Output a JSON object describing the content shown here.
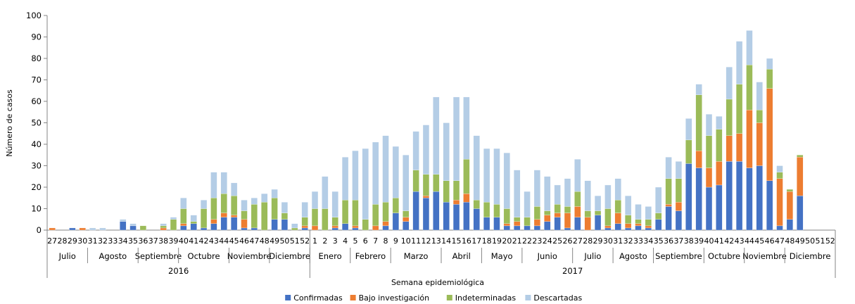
{
  "chart_data": {
    "type": "bar",
    "stacked": true,
    "xlabel": "Semana epidemiológica",
    "ylabel": "Número de casos",
    "ylim": [
      0,
      100
    ],
    "yticks": [
      0,
      10,
      20,
      30,
      40,
      50,
      60,
      70,
      80,
      90,
      100
    ],
    "grid": false,
    "legend_position": "bottom",
    "years": [
      {
        "label": "2016",
        "start": 0,
        "end": 26
      },
      {
        "label": "2017",
        "start": 26,
        "end": 78
      }
    ],
    "months": [
      {
        "label": "Julio",
        "start": 0,
        "end": 4
      },
      {
        "label": "Agosto",
        "start": 4,
        "end": 9
      },
      {
        "label": "Septiembre",
        "start": 9,
        "end": 13
      },
      {
        "label": "Octubre",
        "start": 13,
        "end": 18
      },
      {
        "label": "Noviembre",
        "start": 18,
        "end": 22
      },
      {
        "label": "Diciembre",
        "start": 22,
        "end": 26
      },
      {
        "label": "Enero",
        "start": 26,
        "end": 30
      },
      {
        "label": "Febrero",
        "start": 30,
        "end": 34
      },
      {
        "label": "Marzo",
        "start": 34,
        "end": 39
      },
      {
        "label": "Abril",
        "start": 39,
        "end": 43
      },
      {
        "label": "Mayo",
        "start": 43,
        "end": 47
      },
      {
        "label": "Junio",
        "start": 47,
        "end": 52
      },
      {
        "label": "Julio",
        "start": 52,
        "end": 56
      },
      {
        "label": "Agosto",
        "start": 56,
        "end": 60
      },
      {
        "label": "Septiembre",
        "start": 60,
        "end": 65
      },
      {
        "label": "Octubre",
        "start": 65,
        "end": 69
      },
      {
        "label": "Noviembre",
        "start": 69,
        "end": 73
      },
      {
        "label": "Diciembre",
        "start": 73,
        "end": 78
      }
    ],
    "categories": [
      "27",
      "28",
      "29",
      "30",
      "31",
      "32",
      "33",
      "34",
      "35",
      "36",
      "37",
      "38",
      "39",
      "40",
      "41",
      "42",
      "43",
      "44",
      "45",
      "46",
      "47",
      "48",
      "49",
      "50",
      "51",
      "52",
      "1",
      "2",
      "3",
      "4",
      "5",
      "6",
      "7",
      "8",
      "9",
      "10",
      "11",
      "12",
      "13",
      "14",
      "15",
      "16",
      "17",
      "18",
      "19",
      "20",
      "21",
      "22",
      "23",
      "24",
      "25",
      "26",
      "27",
      "28",
      "29",
      "30",
      "31",
      "32",
      "33",
      "34",
      "35",
      "36",
      "37",
      "38",
      "39",
      "40",
      "41",
      "42",
      "43",
      "44",
      "45",
      "46",
      "47",
      "48",
      "49",
      "50",
      "51",
      "52"
    ],
    "series": [
      {
        "name": "Confirmadas",
        "color": "#4472C4",
        "values": [
          0,
          0,
          1,
          0,
          0,
          0,
          0,
          4,
          2,
          0,
          0,
          0,
          0,
          2,
          3,
          1,
          3,
          6,
          6,
          1,
          1,
          0,
          5,
          5,
          0,
          1,
          0,
          0,
          1,
          3,
          1,
          0,
          0,
          2,
          8,
          4,
          18,
          15,
          18,
          13,
          12,
          13,
          10,
          6,
          6,
          2,
          2,
          2,
          2,
          4,
          6,
          1,
          6,
          0,
          7,
          1,
          3,
          1,
          2,
          1,
          5,
          11,
          9,
          31,
          29,
          20,
          21,
          32,
          32,
          29,
          30,
          23,
          2,
          5,
          16,
          0,
          0,
          0
        ]
      },
      {
        "name": "Bajo investigación",
        "color": "#ED7D31",
        "values": [
          1,
          0,
          0,
          1,
          0,
          0,
          0,
          0,
          0,
          0,
          0,
          1,
          0,
          1,
          0,
          0,
          2,
          2,
          1,
          4,
          0,
          0,
          0,
          0,
          0,
          1,
          2,
          0,
          1,
          0,
          1,
          0,
          2,
          2,
          0,
          2,
          0,
          1,
          0,
          0,
          2,
          4,
          0,
          0,
          0,
          1,
          2,
          0,
          3,
          3,
          2,
          7,
          5,
          6,
          0,
          1,
          5,
          2,
          1,
          1,
          0,
          1,
          4,
          0,
          8,
          9,
          11,
          12,
          13,
          27,
          20,
          43,
          22,
          13,
          18,
          0,
          0,
          0
        ]
      },
      {
        "name": "Indeterminadas",
        "color": "#9BBB59",
        "values": [
          0,
          0,
          0,
          0,
          0,
          0,
          0,
          0,
          0,
          2,
          0,
          1,
          5,
          7,
          1,
          9,
          10,
          9,
          9,
          4,
          11,
          13,
          10,
          3,
          1,
          4,
          8,
          10,
          4,
          11,
          12,
          5,
          10,
          9,
          7,
          3,
          10,
          10,
          8,
          10,
          9,
          16,
          4,
          7,
          6,
          7,
          2,
          4,
          6,
          2,
          4,
          3,
          7,
          3,
          2,
          8,
          6,
          4,
          2,
          3,
          3,
          12,
          11,
          11,
          26,
          15,
          15,
          17,
          23,
          21,
          6,
          9,
          3,
          1,
          1,
          0,
          0,
          0
        ]
      },
      {
        "name": "Descartadas",
        "color": "#B4CDE6",
        "values": [
          0,
          0,
          0,
          0,
          1,
          1,
          0,
          1,
          1,
          0,
          0,
          1,
          1,
          5,
          3,
          4,
          12,
          10,
          6,
          5,
          3,
          4,
          4,
          5,
          2,
          7,
          8,
          15,
          12,
          20,
          23,
          33,
          29,
          31,
          24,
          26,
          18,
          23,
          36,
          27,
          39,
          29,
          30,
          25,
          26,
          26,
          22,
          12,
          17,
          16,
          9,
          13,
          15,
          14,
          7,
          11,
          10,
          9,
          7,
          6,
          12,
          10,
          8,
          10,
          5,
          10,
          6,
          15,
          20,
          16,
          13,
          5,
          3,
          0,
          0,
          0,
          0,
          0
        ]
      }
    ]
  }
}
